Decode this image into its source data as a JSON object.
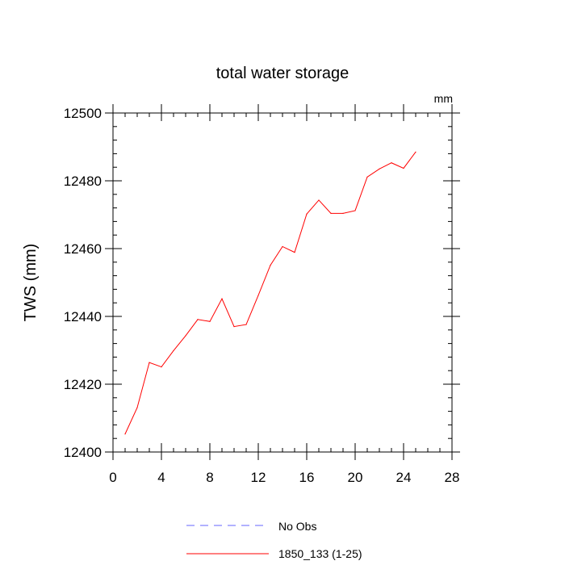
{
  "chart_data": {
    "type": "line",
    "title": "total water storage",
    "units_label": "mm",
    "ylabel": "TWS  (mm)",
    "xlabel": "",
    "xlim": [
      0,
      28
    ],
    "ylim": [
      12400,
      12500
    ],
    "x_ticks": [
      "0",
      "4",
      "8",
      "12",
      "16",
      "20",
      "24",
      "28"
    ],
    "y_ticks": [
      "12400",
      "12420",
      "12440",
      "12460",
      "12480",
      "12500"
    ],
    "x_tick_values": [
      0,
      4,
      8,
      12,
      16,
      20,
      24,
      28
    ],
    "y_tick_values": [
      12400,
      12420,
      12440,
      12460,
      12480,
      12500
    ],
    "x_minor_step": 1,
    "y_minor_step": 4,
    "grid": false,
    "legend_position": "bottom-center",
    "series": [
      {
        "name": "1850_133 (1-25)",
        "color": "#ff0000",
        "dash": "solid",
        "x": [
          1,
          2,
          3,
          4,
          5,
          6,
          7,
          8,
          9,
          10,
          11,
          12,
          13,
          14,
          15,
          16,
          17,
          18,
          19,
          20,
          21,
          22,
          23,
          24,
          25
        ],
        "values": [
          12405.3,
          12413.1,
          12426.4,
          12425.1,
          12429.9,
          12434.3,
          12439.1,
          12438.5,
          12445.2,
          12437.0,
          12437.6,
          12446.2,
          12455.1,
          12460.6,
          12458.9,
          12470.2,
          12474.3,
          12470.4,
          12470.4,
          12471.2,
          12481.1,
          12483.5,
          12485.3,
          12483.7,
          12488.5
        ]
      }
    ],
    "legend": [
      {
        "label": "No Obs",
        "color": "#0000ff",
        "dash": "dashed"
      },
      {
        "label": "1850_133 (1-25)",
        "color": "#ff0000",
        "dash": "solid"
      }
    ]
  }
}
